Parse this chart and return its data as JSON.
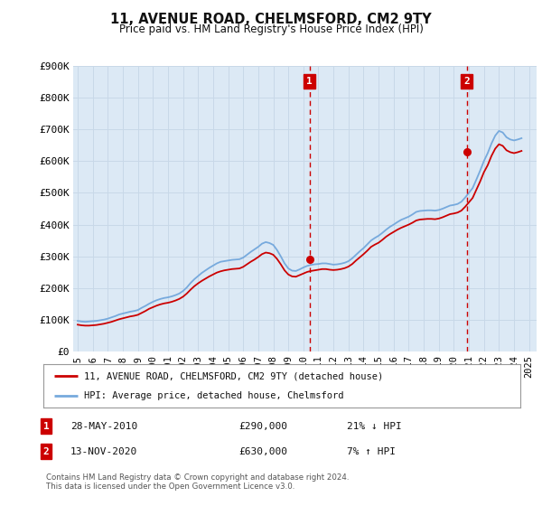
{
  "title": "11, AVENUE ROAD, CHELMSFORD, CM2 9TY",
  "subtitle": "Price paid vs. HM Land Registry's House Price Index (HPI)",
  "background_color": "#ffffff",
  "plot_bg_color": "#dce9f5",
  "grid_color": "#c8d8e8",
  "line1_color": "#cc0000",
  "line2_color": "#77aadd",
  "vline_color": "#cc0000",
  "annotation_box_color": "#cc0000",
  "ylim": [
    0,
    900000
  ],
  "yticks": [
    0,
    100000,
    200000,
    300000,
    400000,
    500000,
    600000,
    700000,
    800000,
    900000
  ],
  "ytick_labels": [
    "£0",
    "£100K",
    "£200K",
    "£300K",
    "£400K",
    "£500K",
    "£600K",
    "£700K",
    "£800K",
    "£900K"
  ],
  "xlim_start": 1994.7,
  "xlim_end": 2025.5,
  "xticks": [
    1995,
    1996,
    1997,
    1998,
    1999,
    2000,
    2001,
    2002,
    2003,
    2004,
    2005,
    2006,
    2007,
    2008,
    2009,
    2010,
    2011,
    2012,
    2013,
    2014,
    2015,
    2016,
    2017,
    2018,
    2019,
    2020,
    2021,
    2022,
    2023,
    2024,
    2025
  ],
  "transaction1_x": 2010.41,
  "transaction1_y": 290000,
  "transaction1_label": "1",
  "transaction1_date": "28-MAY-2010",
  "transaction1_price": "£290,000",
  "transaction1_hpi": "21% ↓ HPI",
  "transaction2_x": 2020.87,
  "transaction2_y": 630000,
  "transaction2_label": "2",
  "transaction2_date": "13-NOV-2020",
  "transaction2_price": "£630,000",
  "transaction2_hpi": "7% ↑ HPI",
  "legend_line1": "11, AVENUE ROAD, CHELMSFORD, CM2 9TY (detached house)",
  "legend_line2": "HPI: Average price, detached house, Chelmsford",
  "footer": "Contains HM Land Registry data © Crown copyright and database right 2024.\nThis data is licensed under the Open Government Licence v3.0.",
  "hpi_data_x": [
    1995.0,
    1995.25,
    1995.5,
    1995.75,
    1996.0,
    1996.25,
    1996.5,
    1996.75,
    1997.0,
    1997.25,
    1997.5,
    1997.75,
    1998.0,
    1998.25,
    1998.5,
    1998.75,
    1999.0,
    1999.25,
    1999.5,
    1999.75,
    2000.0,
    2000.25,
    2000.5,
    2000.75,
    2001.0,
    2001.25,
    2001.5,
    2001.75,
    2002.0,
    2002.25,
    2002.5,
    2002.75,
    2003.0,
    2003.25,
    2003.5,
    2003.75,
    2004.0,
    2004.25,
    2004.5,
    2004.75,
    2005.0,
    2005.25,
    2005.5,
    2005.75,
    2006.0,
    2006.25,
    2006.5,
    2006.75,
    2007.0,
    2007.25,
    2007.5,
    2007.75,
    2008.0,
    2008.25,
    2008.5,
    2008.75,
    2009.0,
    2009.25,
    2009.5,
    2009.75,
    2010.0,
    2010.25,
    2010.5,
    2010.75,
    2011.0,
    2011.25,
    2011.5,
    2011.75,
    2012.0,
    2012.25,
    2012.5,
    2012.75,
    2013.0,
    2013.25,
    2013.5,
    2013.75,
    2014.0,
    2014.25,
    2014.5,
    2014.75,
    2015.0,
    2015.25,
    2015.5,
    2015.75,
    2016.0,
    2016.25,
    2016.5,
    2016.75,
    2017.0,
    2017.25,
    2017.5,
    2017.75,
    2018.0,
    2018.25,
    2018.5,
    2018.75,
    2019.0,
    2019.25,
    2019.5,
    2019.75,
    2020.0,
    2020.25,
    2020.5,
    2020.75,
    2021.0,
    2021.25,
    2021.5,
    2021.75,
    2022.0,
    2022.25,
    2022.5,
    2022.75,
    2023.0,
    2023.25,
    2023.5,
    2023.75,
    2024.0,
    2024.25,
    2024.5
  ],
  "hpi_data_y": [
    97000,
    95000,
    94000,
    95000,
    96000,
    97000,
    99000,
    101000,
    104000,
    108000,
    112000,
    117000,
    120000,
    123000,
    126000,
    128000,
    131000,
    138000,
    144000,
    151000,
    157000,
    162000,
    166000,
    169000,
    171000,
    174000,
    178000,
    183000,
    191000,
    202000,
    216000,
    228000,
    238000,
    248000,
    256000,
    264000,
    271000,
    278000,
    283000,
    285000,
    287000,
    289000,
    290000,
    291000,
    296000,
    305000,
    314000,
    322000,
    330000,
    340000,
    345000,
    342000,
    336000,
    320000,
    300000,
    278000,
    262000,
    255000,
    254000,
    259000,
    265000,
    270000,
    273000,
    275000,
    276000,
    278000,
    278000,
    276000,
    274000,
    275000,
    277000,
    280000,
    285000,
    294000,
    305000,
    316000,
    326000,
    338000,
    350000,
    358000,
    365000,
    374000,
    384000,
    393000,
    400000,
    408000,
    415000,
    420000,
    425000,
    432000,
    440000,
    443000,
    444000,
    445000,
    445000,
    444000,
    446000,
    450000,
    455000,
    460000,
    462000,
    465000,
    472000,
    485000,
    500000,
    515000,
    542000,
    570000,
    600000,
    625000,
    655000,
    680000,
    695000,
    690000,
    675000,
    668000,
    665000,
    668000,
    672000
  ],
  "price_data_x": [
    1995.0,
    1995.25,
    1995.5,
    1995.75,
    1996.0,
    1996.25,
    1996.5,
    1996.75,
    1997.0,
    1997.25,
    1997.5,
    1997.75,
    1998.0,
    1998.25,
    1998.5,
    1998.75,
    1999.0,
    1999.25,
    1999.5,
    1999.75,
    2000.0,
    2000.25,
    2000.5,
    2000.75,
    2001.0,
    2001.25,
    2001.5,
    2001.75,
    2002.0,
    2002.25,
    2002.5,
    2002.75,
    2003.0,
    2003.25,
    2003.5,
    2003.75,
    2004.0,
    2004.25,
    2004.5,
    2004.75,
    2005.0,
    2005.25,
    2005.5,
    2005.75,
    2006.0,
    2006.25,
    2006.5,
    2006.75,
    2007.0,
    2007.25,
    2007.5,
    2007.75,
    2008.0,
    2008.25,
    2008.5,
    2008.75,
    2009.0,
    2009.25,
    2009.5,
    2009.75,
    2010.0,
    2010.25,
    2010.5,
    2010.75,
    2011.0,
    2011.25,
    2011.5,
    2011.75,
    2012.0,
    2012.25,
    2012.5,
    2012.75,
    2013.0,
    2013.25,
    2013.5,
    2013.75,
    2014.0,
    2014.25,
    2014.5,
    2014.75,
    2015.0,
    2015.25,
    2015.5,
    2015.75,
    2016.0,
    2016.25,
    2016.5,
    2016.75,
    2017.0,
    2017.25,
    2017.5,
    2017.75,
    2018.0,
    2018.25,
    2018.5,
    2018.75,
    2019.0,
    2019.25,
    2019.5,
    2019.75,
    2020.0,
    2020.25,
    2020.5,
    2020.75,
    2021.0,
    2021.25,
    2021.5,
    2021.75,
    2022.0,
    2022.25,
    2022.5,
    2022.75,
    2023.0,
    2023.25,
    2023.5,
    2023.75,
    2024.0,
    2024.25,
    2024.5
  ],
  "price_data_y": [
    85000,
    83000,
    82000,
    82000,
    83000,
    84000,
    86000,
    88000,
    91000,
    94000,
    98000,
    102000,
    105000,
    108000,
    111000,
    113000,
    116000,
    122000,
    128000,
    135000,
    140000,
    145000,
    149000,
    152000,
    154000,
    157000,
    161000,
    166000,
    173000,
    183000,
    195000,
    206000,
    215000,
    223000,
    230000,
    237000,
    243000,
    249000,
    253000,
    256000,
    258000,
    260000,
    261000,
    262000,
    267000,
    275000,
    283000,
    290000,
    298000,
    307000,
    312000,
    310000,
    305000,
    292000,
    275000,
    256000,
    243000,
    237000,
    236000,
    241000,
    246000,
    251000,
    254000,
    256000,
    258000,
    260000,
    260000,
    258000,
    257000,
    258000,
    260000,
    263000,
    268000,
    276000,
    287000,
    297000,
    307000,
    318000,
    330000,
    337000,
    343000,
    352000,
    362000,
    370000,
    377000,
    384000,
    390000,
    395000,
    400000,
    406000,
    413000,
    416000,
    417000,
    418000,
    418000,
    417000,
    419000,
    423000,
    428000,
    433000,
    435000,
    438000,
    444000,
    456000,
    470000,
    484000,
    510000,
    536000,
    565000,
    587000,
    616000,
    639000,
    653000,
    648000,
    634000,
    628000,
    625000,
    628000,
    632000
  ]
}
